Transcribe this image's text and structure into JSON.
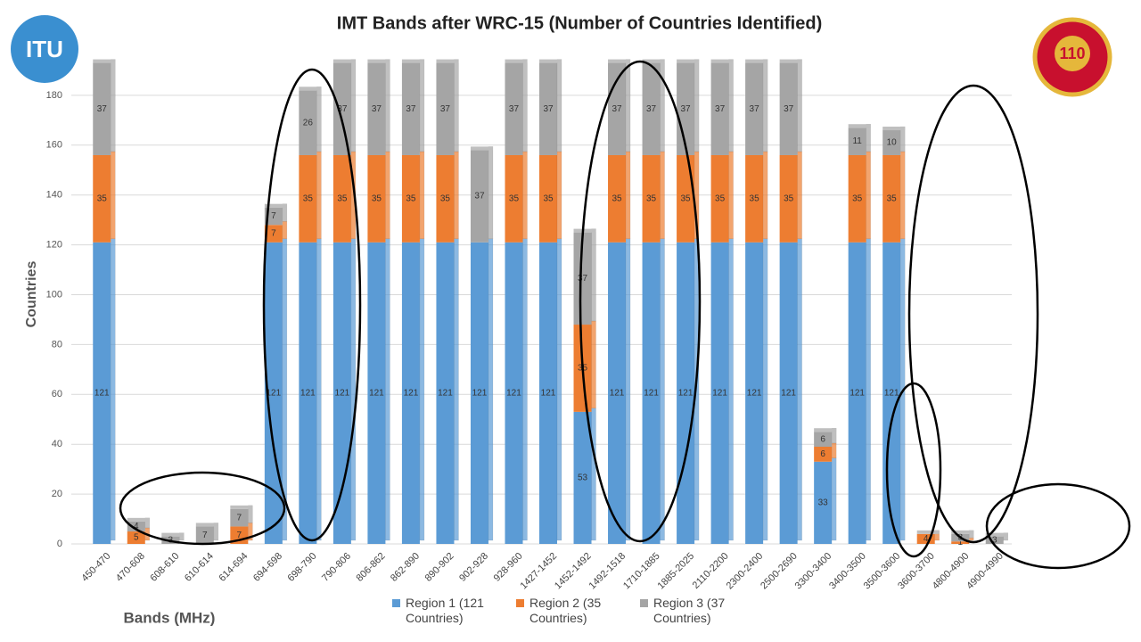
{
  "chart_data": {
    "type": "stacked_bar",
    "title": "IMT Bands after WRC-15 (Number of Countries Identified)",
    "ylabel": "Countries",
    "xlabel": "Bands (MHz)",
    "logos": {
      "left": "ITU",
      "right": "110"
    },
    "categories": [
      "450-470",
      "470-608",
      "608-610",
      "610-614",
      "614-694",
      "694-698",
      "698-790",
      "790-806",
      "806-862",
      "862-890",
      "890-902",
      "902-928",
      "928-960",
      "1427-1452",
      "1452-1492",
      "1492-1518",
      "1710-1885",
      "1885-2025",
      "2110-2200",
      "2300-2400",
      "2500-2690",
      "3300-3400",
      "3400-3500",
      "3500-3600",
      "3600-3700",
      "4800-4900",
      "4900-4990"
    ],
    "series": [
      {
        "name": "Region 1 (121 Countries)",
        "color": "#5b9bd5",
        "values": [
          121,
          0,
          0,
          0,
          0,
          121,
          121,
          121,
          121,
          121,
          121,
          121,
          121,
          121,
          53,
          121,
          121,
          121,
          121,
          121,
          121,
          33,
          121,
          121,
          0,
          0,
          0
        ]
      },
      {
        "name": "Region 2 (35 Countries)",
        "color": "#ed7d31",
        "values": [
          35,
          5,
          0,
          0,
          7,
          7,
          35,
          35,
          35,
          35,
          35,
          0,
          35,
          35,
          35,
          35,
          35,
          35,
          35,
          35,
          35,
          6,
          35,
          35,
          4,
          1,
          0
        ]
      },
      {
        "name": "Region 3 (37 Countries)",
        "color": "#a5a5a5",
        "values": [
          37,
          4,
          3,
          7,
          7,
          7,
          26,
          37,
          37,
          37,
          37,
          37,
          37,
          37,
          37,
          37,
          37,
          37,
          37,
          37,
          37,
          6,
          11,
          10,
          0,
          3,
          3
        ]
      }
    ],
    "ylim": [
      0,
      200
    ],
    "yticks": [
      0,
      20,
      40,
      60,
      80,
      100,
      120,
      140,
      160,
      180
    ],
    "grid": true
  }
}
